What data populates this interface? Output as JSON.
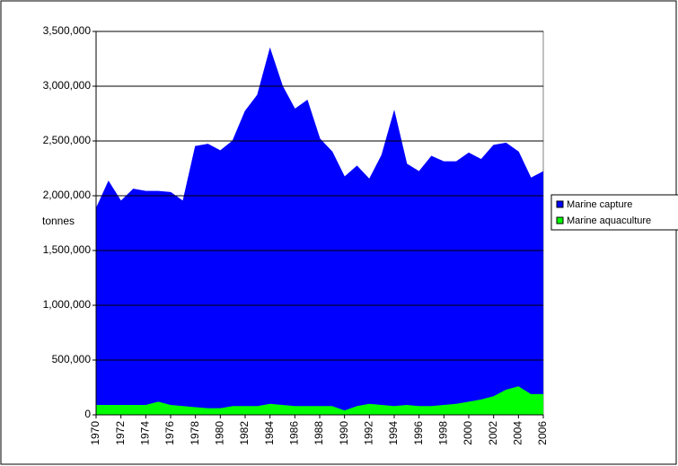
{
  "chart_data": {
    "type": "stacked-area",
    "y_label": "tonnes",
    "x": [
      1970,
      1971,
      1972,
      1973,
      1974,
      1975,
      1976,
      1977,
      1978,
      1979,
      1980,
      1981,
      1982,
      1983,
      1984,
      1985,
      1986,
      1987,
      1988,
      1989,
      1990,
      1991,
      1992,
      1993,
      1994,
      1995,
      1996,
      1997,
      1998,
      1999,
      2000,
      2001,
      2002,
      2003,
      2004,
      2005,
      2006
    ],
    "xlim": [
      1970,
      2006
    ],
    "xticks": [
      1970,
      1972,
      1974,
      1976,
      1978,
      1980,
      1982,
      1984,
      1986,
      1988,
      1990,
      1992,
      1994,
      1996,
      1998,
      2000,
      2002,
      2004,
      2006
    ],
    "series": [
      {
        "name": "Marine capture",
        "color": "#0000ff",
        "values": [
          1790000,
          2040000,
          1860000,
          1970000,
          1950000,
          1920000,
          1940000,
          1870000,
          2380000,
          2410000,
          2350000,
          2420000,
          2690000,
          2840000,
          3240000,
          2910000,
          2710000,
          2790000,
          2440000,
          2320000,
          2130000,
          2190000,
          2050000,
          2280000,
          2690000,
          2200000,
          2140000,
          2280000,
          2220000,
          2210000,
          2270000,
          2190000,
          2290000,
          2250000,
          2140000,
          1970000,
          2030000
        ]
      },
      {
        "name": "Marine aquaculture",
        "color": "#00ff00",
        "values": [
          90000,
          90000,
          90000,
          90000,
          90000,
          120000,
          90000,
          80000,
          70000,
          60000,
          60000,
          80000,
          80000,
          80000,
          100000,
          90000,
          80000,
          80000,
          80000,
          80000,
          40000,
          80000,
          100000,
          90000,
          80000,
          90000,
          80000,
          80000,
          90000,
          100000,
          120000,
          140000,
          170000,
          230000,
          260000,
          190000,
          190000
        ]
      }
    ],
    "ylim": [
      0,
      3500000
    ],
    "yticks": [
      0,
      {
        "value": 500000,
        "label": "500,000"
      },
      {
        "value": 1000000,
        "label": "1,000,000"
      },
      {
        "value": 1500000,
        "label": "1,500,000"
      },
      {
        "value": 2000000,
        "label": "2,000,000"
      },
      {
        "value": 2500000,
        "label": "2,500,000"
      },
      {
        "value": 3000000,
        "label": "3,000,000"
      },
      {
        "value": 3500000,
        "label": "3,500,000"
      }
    ],
    "grid": true
  }
}
